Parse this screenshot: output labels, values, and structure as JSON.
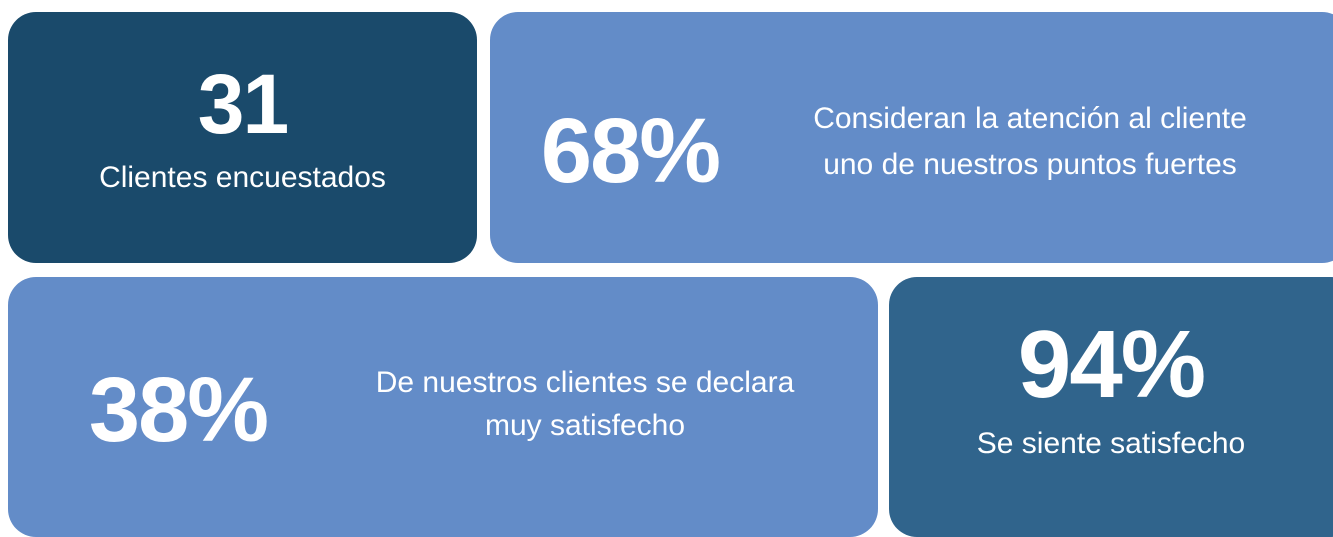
{
  "cards": [
    {
      "value": "31",
      "lines": [
        "Clientes encuestados"
      ]
    },
    {
      "value": "68%",
      "lines": [
        "Consideran la atención al cliente",
        "uno de nuestros puntos fuertes"
      ]
    },
    {
      "value": "38%",
      "lines": [
        "De nuestros clientes se declara",
        "muy satisfecho"
      ]
    },
    {
      "value": "94%",
      "lines": [
        "Se siente satisfecho"
      ]
    }
  ]
}
